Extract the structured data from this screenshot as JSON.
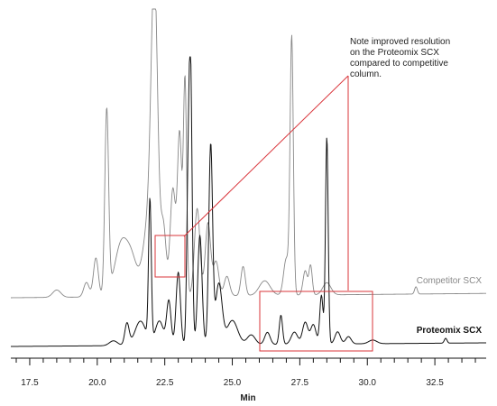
{
  "chart_data": {
    "type": "line",
    "xlabel": "Min",
    "xlim": [
      16.8,
      34.4
    ],
    "xticks": [
      17.5,
      20.0,
      22.5,
      25.0,
      27.5,
      30.0,
      32.5
    ],
    "xtick_labels": [
      "17.5",
      "20.0",
      "22.5",
      "25.0",
      "27.5",
      "30.0",
      "32.5"
    ],
    "ylabel": "",
    "grid": false,
    "annotation": [
      "Note improved resolution",
      "on the Proteomix SCX",
      "compared to competitive",
      "column."
    ],
    "colors": {
      "competitor": "#888888",
      "proteomix": "#111111",
      "highlight": "#d9343a"
    },
    "series": [
      {
        "name": "Competitor SCX",
        "baseline": 0.0,
        "peaks": [
          [
            18.5,
            0.03,
            0.15
          ],
          [
            19.6,
            0.06,
            0.1
          ],
          [
            19.95,
            0.16,
            0.09
          ],
          [
            20.35,
            0.76,
            0.07
          ],
          [
            20.9,
            0.22,
            0.25
          ],
          [
            21.3,
            0.12,
            0.2
          ],
          [
            21.9,
            0.3,
            0.2
          ],
          [
            22.12,
            1.18,
            0.12
          ],
          [
            22.45,
            0.28,
            0.1
          ],
          [
            22.8,
            0.44,
            0.1
          ],
          [
            23.05,
            0.66,
            0.08
          ],
          [
            23.25,
            0.88,
            0.06
          ],
          [
            23.7,
            0.36,
            0.1
          ],
          [
            24.1,
            0.3,
            0.1
          ],
          [
            24.4,
            0.14,
            0.1
          ],
          [
            24.8,
            0.08,
            0.1
          ],
          [
            25.4,
            0.12,
            0.08
          ],
          [
            26.2,
            0.06,
            0.2
          ],
          [
            27.0,
            0.15,
            0.1
          ],
          [
            27.2,
            1.05,
            0.06
          ],
          [
            27.7,
            0.1,
            0.08
          ],
          [
            27.9,
            0.12,
            0.06
          ],
          [
            28.5,
            0.05,
            0.15
          ],
          [
            31.8,
            0.03,
            0.05
          ]
        ]
      },
      {
        "name": "Proteomix SCX",
        "baseline": 0.0,
        "peaks": [
          [
            20.6,
            0.02,
            0.15
          ],
          [
            21.1,
            0.09,
            0.08
          ],
          [
            21.6,
            0.1,
            0.2
          ],
          [
            21.95,
            0.58,
            0.05
          ],
          [
            22.3,
            0.1,
            0.15
          ],
          [
            22.65,
            0.18,
            0.08
          ],
          [
            23.0,
            0.3,
            0.08
          ],
          [
            23.35,
            0.44,
            0.05
          ],
          [
            23.45,
            1.18,
            0.06
          ],
          [
            23.8,
            0.45,
            0.08
          ],
          [
            24.2,
            0.82,
            0.07
          ],
          [
            24.5,
            0.25,
            0.12
          ],
          [
            25.0,
            0.1,
            0.2
          ],
          [
            25.7,
            0.04,
            0.15
          ],
          [
            26.3,
            0.05,
            0.1
          ],
          [
            26.8,
            0.12,
            0.06
          ],
          [
            27.3,
            0.05,
            0.12
          ],
          [
            27.7,
            0.09,
            0.1
          ],
          [
            28.0,
            0.08,
            0.1
          ],
          [
            28.3,
            0.2,
            0.06
          ],
          [
            28.5,
            0.85,
            0.05
          ],
          [
            28.9,
            0.05,
            0.1
          ],
          [
            29.3,
            0.03,
            0.1
          ],
          [
            30.2,
            0.015,
            0.15
          ],
          [
            32.9,
            0.02,
            0.05
          ]
        ]
      }
    ]
  }
}
